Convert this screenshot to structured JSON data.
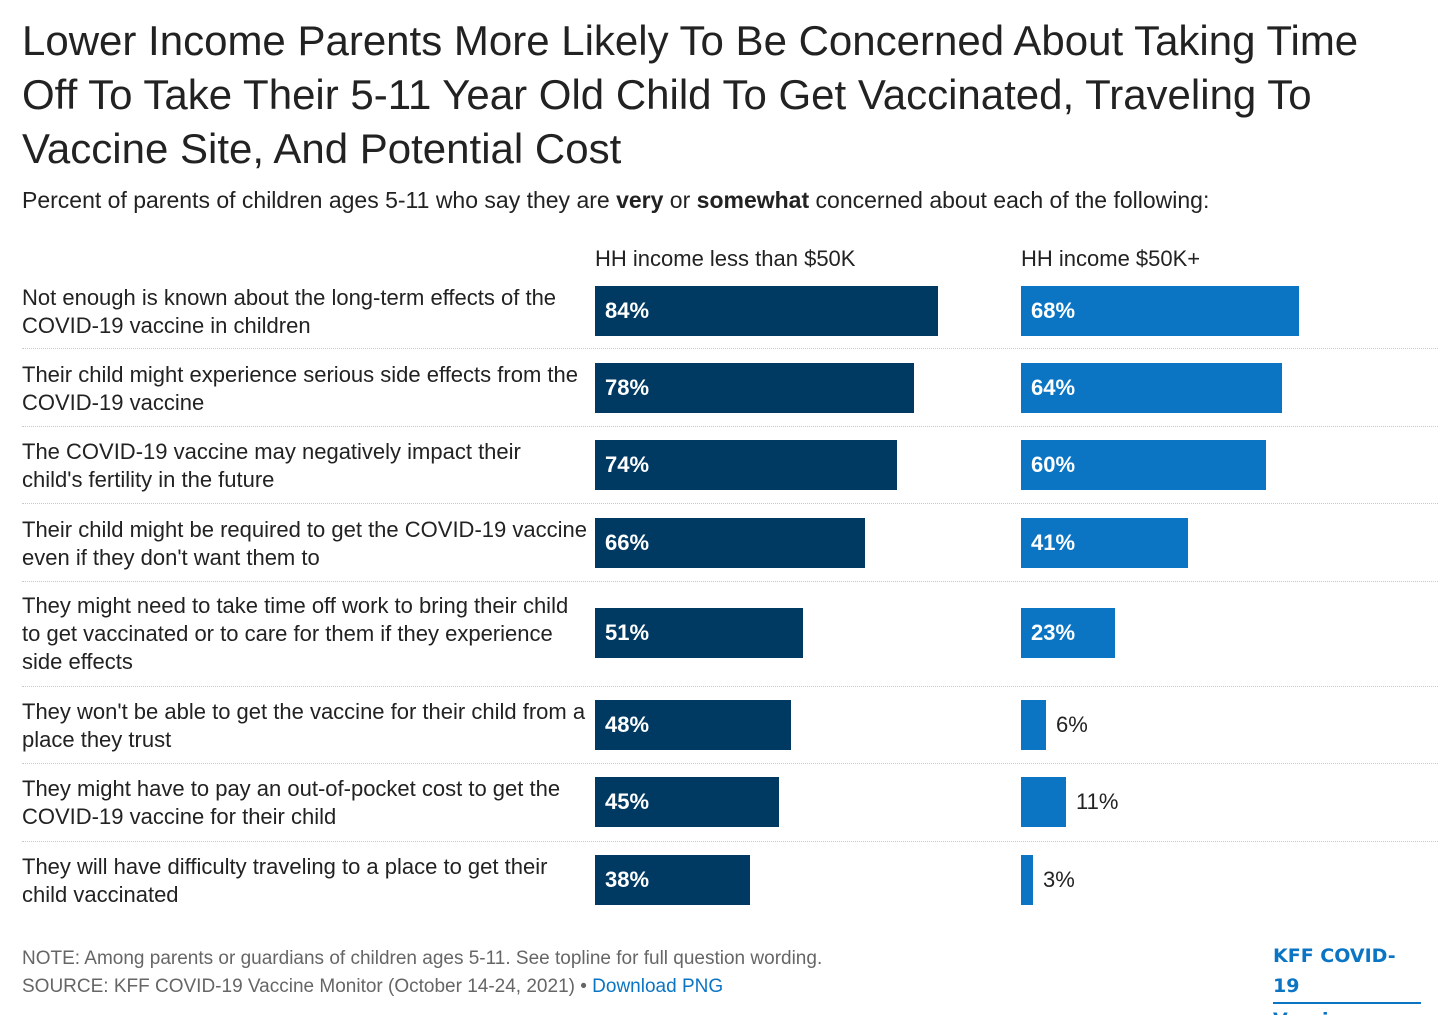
{
  "title": "Lower Income Parents More Likely To Be Concerned About Taking Time Off To Take Their 5-11 Year Old Child To Get Vaccinated, Traveling To Vaccine Site, And Potential Cost",
  "subtitle": {
    "part1": "Percent of parents of children ages 5-11 who say they are ",
    "bold1": "very",
    "part2": " or ",
    "bold2": "somewhat",
    "part3": " concerned about each of the following:"
  },
  "colors": {
    "series_low_income": "#003a63",
    "series_high_income": "#0b75c4",
    "divider": "#c9c9c9",
    "text": "#222222",
    "note_text": "#666666",
    "link": "#0b75c4"
  },
  "chart_data": {
    "type": "bar",
    "orientation": "horizontal",
    "unit": "%",
    "xlim": [
      0,
      100
    ],
    "grid": false,
    "categories": [
      "Not enough is known about the long-term effects of the COVID-19 vaccine in children",
      "Their child might experience serious side effects from the COVID-19 vaccine",
      "The COVID-19 vaccine may negatively impact their child's fertility in the future",
      "Their child might be required to get the COVID-19 vaccine even if they don't want them to",
      "They might need to take time off work to bring their child to get vaccinated or to care for them if they experience side effects",
      "They won't be able to get the vaccine for their child from a place they trust",
      "They might have to pay an out-of-pocket cost to get the COVID-19 vaccine for their child",
      "They will have difficulty traveling to a place to get their child vaccinated"
    ],
    "series": [
      {
        "name": "HH income less than $50K",
        "color": "#003a63",
        "values": [
          84,
          78,
          74,
          66,
          51,
          48,
          45,
          38
        ]
      },
      {
        "name": "HH income $50K+",
        "color": "#0b75c4",
        "values": [
          68,
          64,
          60,
          41,
          23,
          6,
          11,
          3
        ]
      }
    ]
  },
  "note": "NOTE: Among parents or guardians of children ages 5-11. See topline for full question wording.",
  "source": {
    "text": "SOURCE: KFF COVID-19 Vaccine Monitor (October 14-24, 2021) • ",
    "link_label": "Download PNG"
  },
  "brand": {
    "line1": "KFF COVID-19",
    "line2": "Vaccine Monitor"
  }
}
